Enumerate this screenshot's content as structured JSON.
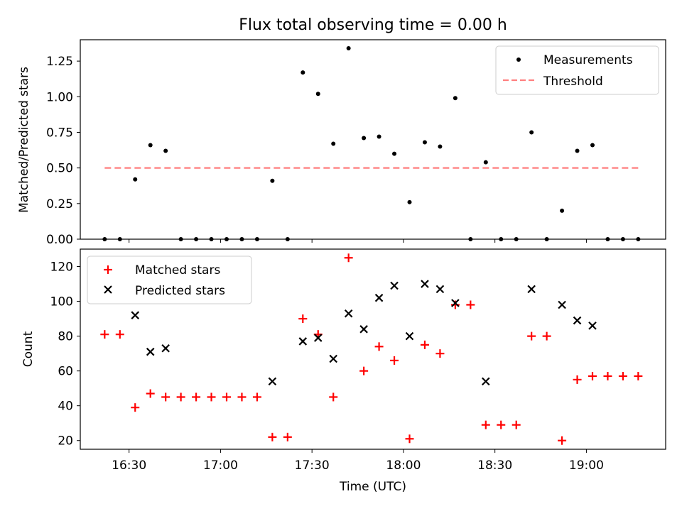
{
  "chart_data": [
    {
      "type": "scatter",
      "title": "Flux total observing time = 0.00 h",
      "xlabel": "",
      "ylabel": "Matched/Predicted stars",
      "ylim": [
        0,
        1.4
      ],
      "yticks": [
        "0.00",
        "0.25",
        "0.50",
        "0.75",
        "1.00",
        "1.25"
      ],
      "ytick_values": [
        0,
        0.25,
        0.5,
        0.75,
        1.0,
        1.25
      ],
      "xlim": [
        "16:14",
        "19:26"
      ],
      "xticks_values": [
        "16:30",
        "17:00",
        "17:30",
        "18:00",
        "18:30",
        "19:00"
      ],
      "xticks_labels_shown": false,
      "legend": "upper right",
      "series": [
        {
          "name": "Measurements",
          "marker": "dot",
          "color": "#000000",
          "x": [
            "16:22",
            "16:27",
            "16:32",
            "16:37",
            "16:42",
            "16:47",
            "16:52",
            "16:57",
            "17:02",
            "17:07",
            "17:12",
            "17:17",
            "17:22",
            "17:27",
            "17:32",
            "17:37",
            "17:42",
            "17:47",
            "17:52",
            "17:57",
            "18:02",
            "18:07",
            "18:12",
            "18:17",
            "18:22",
            "18:27",
            "18:32",
            "18:37",
            "18:42",
            "18:47",
            "18:52",
            "18:57",
            "19:02",
            "19:07",
            "19:12",
            "19:17"
          ],
          "y": [
            0,
            0,
            0.42,
            0.66,
            0.62,
            0,
            0,
            0,
            0,
            0,
            0,
            0.41,
            0,
            1.17,
            1.02,
            0.67,
            1.34,
            0.71,
            0.72,
            0.6,
            0.26,
            0.68,
            0.65,
            0.99,
            0,
            0.54,
            0,
            0,
            0.75,
            0,
            0.2,
            0.62,
            0.66,
            0,
            0,
            0
          ]
        },
        {
          "name": "Threshold",
          "style": "dashed-line",
          "color": "#ff7f7f",
          "x": [
            "16:22",
            "19:17"
          ],
          "y": [
            0.5,
            0.5
          ]
        }
      ]
    },
    {
      "type": "scatter",
      "title": "",
      "xlabel": "Time (UTC)",
      "ylabel": "Count",
      "ylim": [
        15,
        130
      ],
      "yticks": [
        "20",
        "40",
        "60",
        "80",
        "100",
        "120"
      ],
      "ytick_values": [
        20,
        40,
        60,
        80,
        100,
        120
      ],
      "xlim": [
        "16:14",
        "19:26"
      ],
      "xticks": [
        "16:30",
        "17:00",
        "17:30",
        "18:00",
        "18:30",
        "19:00"
      ],
      "legend": "upper left",
      "series": [
        {
          "name": "Matched stars",
          "marker": "plus",
          "color": "#ff0000",
          "x": [
            "16:22",
            "16:27",
            "16:32",
            "16:37",
            "16:42",
            "16:47",
            "16:52",
            "16:57",
            "17:02",
            "17:07",
            "17:12",
            "17:17",
            "17:22",
            "17:27",
            "17:32",
            "17:37",
            "17:42",
            "17:47",
            "17:52",
            "17:57",
            "18:02",
            "18:07",
            "18:12",
            "18:17",
            "18:22",
            "18:27",
            "18:32",
            "18:37",
            "18:42",
            "18:47",
            "18:52",
            "18:57",
            "19:02",
            "19:07",
            "19:12",
            "19:17"
          ],
          "y": [
            81,
            81,
            39,
            47,
            45,
            45,
            45,
            45,
            45,
            45,
            45,
            22,
            22,
            90,
            81,
            45,
            125,
            60,
            74,
            66,
            21,
            75,
            70,
            98,
            98,
            29,
            29,
            29,
            80,
            80,
            20,
            55,
            57,
            57,
            57,
            57
          ]
        },
        {
          "name": "Predicted stars",
          "marker": "x",
          "color": "#000000",
          "x": [
            "16:32",
            "16:37",
            "16:42",
            "17:17",
            "17:27",
            "17:32",
            "17:37",
            "17:42",
            "17:47",
            "17:52",
            "17:57",
            "18:02",
            "18:07",
            "18:12",
            "18:17",
            "18:27",
            "18:42",
            "18:52",
            "18:57",
            "19:02"
          ],
          "y": [
            92,
            71,
            73,
            54,
            77,
            79,
            67,
            93,
            84,
            102,
            109,
            80,
            110,
            107,
            99,
            54,
            107,
            98,
            89,
            86
          ]
        }
      ]
    }
  ]
}
